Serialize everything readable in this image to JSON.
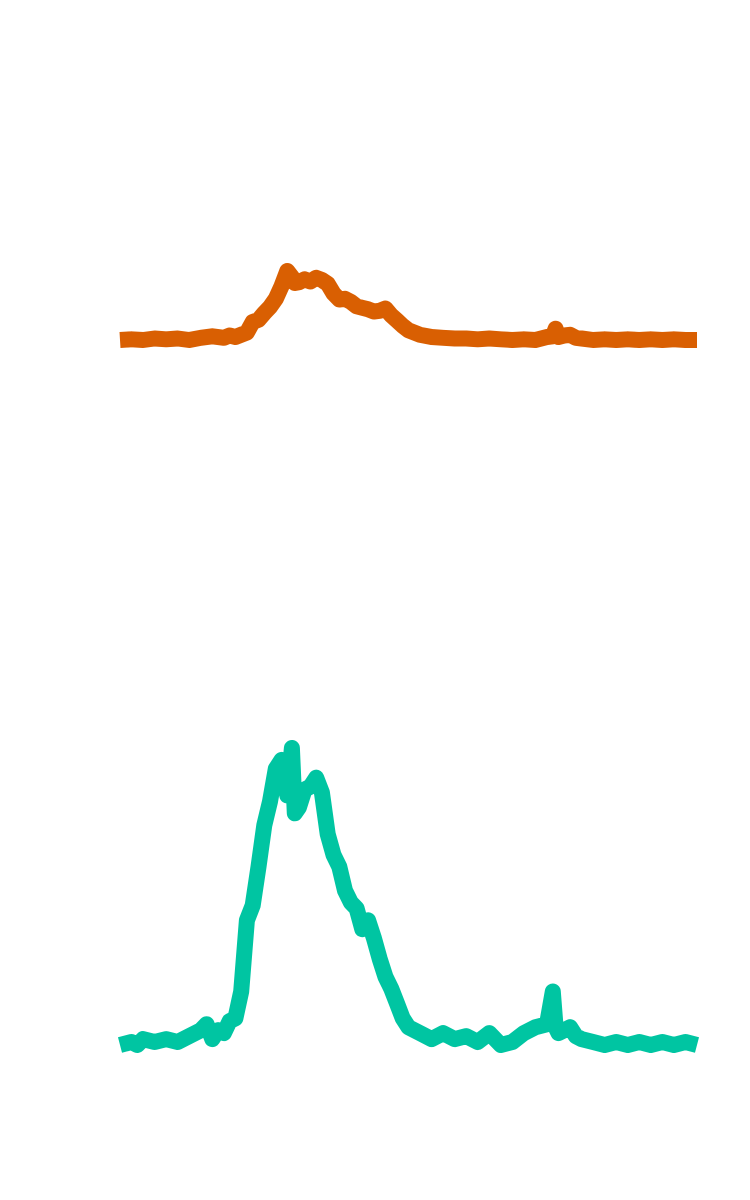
{
  "chart_data": [
    {
      "type": "line",
      "title": "",
      "xlabel": "",
      "ylabel": "",
      "grid": false,
      "axes_visible": false,
      "xlim": [
        0,
        100
      ],
      "ylim": [
        0,
        1
      ],
      "series": [
        {
          "color": "#d95f02",
          "x": [
            0,
            2,
            4,
            6,
            8,
            10,
            12,
            14,
            16,
            18,
            19,
            20,
            22,
            23,
            24,
            25,
            26,
            27,
            28,
            29,
            29.8,
            30.3,
            31,
            32,
            33,
            34,
            35,
            36,
            37,
            38,
            39,
            40,
            41,
            42,
            43,
            44,
            45,
            46,
            47,
            48,
            49,
            50,
            52,
            54,
            56,
            58,
            60,
            62,
            64,
            66,
            68,
            70,
            72,
            74,
            75,
            75.5,
            76,
            77,
            78,
            79,
            80,
            82,
            84,
            86,
            88,
            90,
            92,
            94,
            96,
            98,
            100
          ],
          "y": [
            0.0,
            0.01,
            0.0,
            0.02,
            0.01,
            0.02,
            0.0,
            0.03,
            0.05,
            0.03,
            0.06,
            0.04,
            0.1,
            0.24,
            0.27,
            0.36,
            0.44,
            0.55,
            0.72,
            0.92,
            0.84,
            0.76,
            0.77,
            0.81,
            0.78,
            0.83,
            0.8,
            0.75,
            0.62,
            0.54,
            0.55,
            0.51,
            0.45,
            0.43,
            0.41,
            0.38,
            0.39,
            0.42,
            0.33,
            0.26,
            0.19,
            0.13,
            0.07,
            0.04,
            0.03,
            0.02,
            0.02,
            0.01,
            0.02,
            0.01,
            0.0,
            0.01,
            0.0,
            0.04,
            0.05,
            0.15,
            0.04,
            0.06,
            0.07,
            0.03,
            0.02,
            0.0,
            0.01,
            0.0,
            0.01,
            0.0,
            0.01,
            0.0,
            0.01,
            0.0,
            0.0
          ]
        }
      ]
    },
    {
      "type": "line",
      "title": "",
      "xlabel": "",
      "ylabel": "",
      "grid": false,
      "axes_visible": false,
      "xlim": [
        0,
        100
      ],
      "ylim": [
        0,
        1
      ],
      "series": [
        {
          "color": "#00c5a2",
          "x": [
            0,
            2,
            3,
            4,
            6,
            8,
            10,
            12,
            14,
            15,
            16,
            17,
            18,
            19,
            20,
            21,
            22,
            23,
            24,
            25,
            26,
            27,
            28,
            29,
            29.8,
            30.3,
            31,
            32,
            33,
            34,
            35,
            36,
            37,
            38,
            39,
            40,
            41,
            42,
            43,
            44,
            45,
            46,
            47,
            48,
            49,
            50,
            52,
            54,
            56,
            58,
            60,
            62,
            64,
            66,
            68,
            70,
            72,
            74,
            75,
            75.5,
            76,
            77,
            78,
            79,
            80,
            82,
            84,
            86,
            88,
            90,
            92,
            94,
            96,
            98,
            100
          ],
          "y": [
            0.0,
            0.01,
            0.0,
            0.02,
            0.01,
            0.02,
            0.01,
            0.03,
            0.05,
            0.07,
            0.02,
            0.05,
            0.04,
            0.08,
            0.09,
            0.18,
            0.42,
            0.47,
            0.6,
            0.74,
            0.82,
            0.93,
            0.96,
            0.84,
            1.0,
            0.78,
            0.8,
            0.86,
            0.87,
            0.9,
            0.85,
            0.71,
            0.64,
            0.6,
            0.52,
            0.48,
            0.46,
            0.39,
            0.42,
            0.36,
            0.29,
            0.23,
            0.19,
            0.14,
            0.09,
            0.06,
            0.04,
            0.02,
            0.04,
            0.02,
            0.03,
            0.01,
            0.04,
            0.0,
            0.01,
            0.04,
            0.06,
            0.07,
            0.18,
            0.06,
            0.04,
            0.05,
            0.06,
            0.03,
            0.02,
            0.01,
            0.0,
            0.01,
            0.0,
            0.01,
            0.0,
            0.01,
            0.0,
            0.01,
            0.0
          ]
        }
      ]
    }
  ]
}
